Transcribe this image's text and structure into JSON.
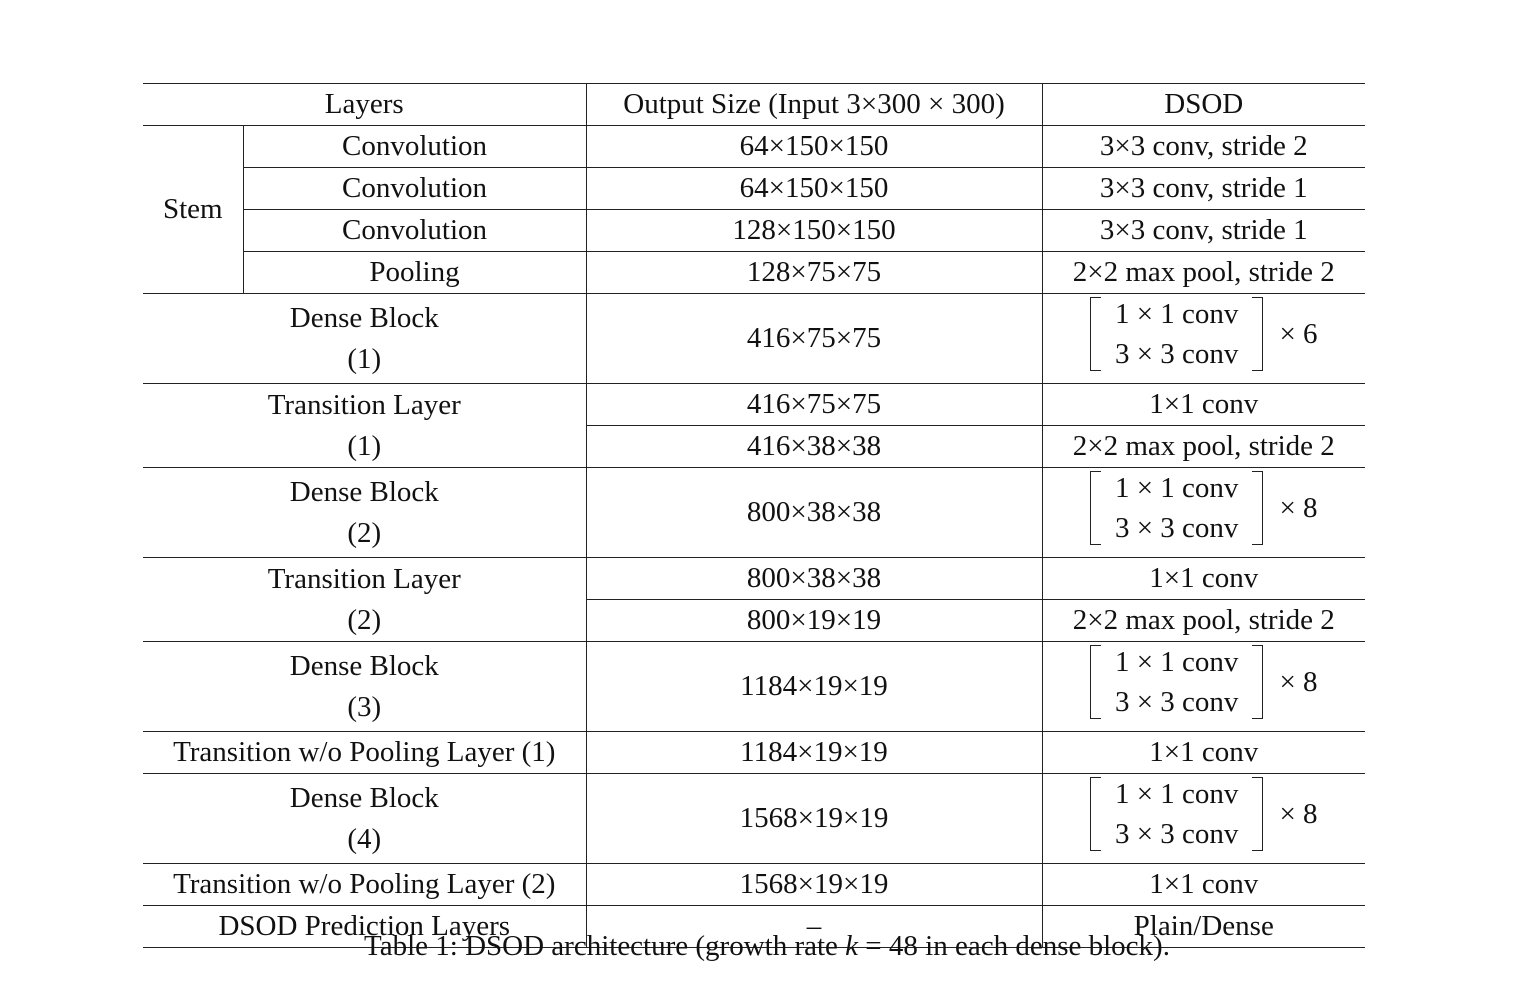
{
  "table": {
    "headers": [
      "Layers",
      "Output Size (Input 3×300 × 300)",
      "DSOD"
    ],
    "stem": {
      "label": "Stem",
      "rows": [
        {
          "layer": "Convolution",
          "output": "64×150×150",
          "dsod": "3×3 conv, stride 2"
        },
        {
          "layer": "Convolution",
          "output": "64×150×150",
          "dsod": "3×3 conv, stride 1"
        },
        {
          "layer": "Convolution",
          "output": "128×150×150",
          "dsod": "3×3 conv, stride 1"
        },
        {
          "layer": "Pooling",
          "output": "128×75×75",
          "dsod": "2×2 max pool, stride 2"
        }
      ]
    },
    "dense1": {
      "name": "Dense Block",
      "idx": "(1)",
      "output": "416×75×75",
      "m1": "1 × 1 conv",
      "m2": "3 × 3 conv",
      "rep": "× 6"
    },
    "trans1": {
      "name": "Transition Layer",
      "idx": "(1)",
      "out_a": "416×75×75",
      "dsod_a": "1×1 conv",
      "out_b": "416×38×38",
      "dsod_b": "2×2 max pool, stride 2"
    },
    "dense2": {
      "name": "Dense Block",
      "idx": "(2)",
      "output": "800×38×38",
      "m1": "1 × 1 conv",
      "m2": "3 × 3 conv",
      "rep": "× 8"
    },
    "trans2": {
      "name": "Transition Layer",
      "idx": "(2)",
      "out_a": "800×38×38",
      "dsod_a": "1×1 conv",
      "out_b": "800×19×19",
      "dsod_b": "2×2 max pool, stride 2"
    },
    "dense3": {
      "name": "Dense Block",
      "idx": "(3)",
      "output": "1184×19×19",
      "m1": "1 × 1 conv",
      "m2": "3 × 3 conv",
      "rep": "× 8"
    },
    "trans_np1": {
      "name": "Transition w/o Pooling Layer (1)",
      "output": "1184×19×19",
      "dsod": "1×1 conv"
    },
    "dense4": {
      "name": "Dense Block",
      "idx": "(4)",
      "output": "1568×19×19",
      "m1": "1 × 1 conv",
      "m2": "3 × 3 conv",
      "rep": "× 8"
    },
    "trans_np2": {
      "name": "Transition w/o Pooling Layer (2)",
      "output": "1568×19×19",
      "dsod": "1×1 conv"
    },
    "pred": {
      "name": "DSOD Prediction Layers",
      "output": "–",
      "dsod": "Plain/Dense"
    }
  },
  "caption": {
    "prefix": "Table 1: DSOD architecture (growth rate ",
    "var": "k",
    "suffix": " = 48 in each dense block)."
  }
}
